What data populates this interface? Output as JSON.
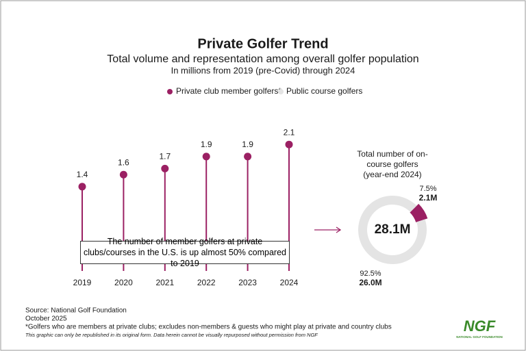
{
  "chart_data": [
    {
      "type": "lollipop",
      "title": "Private Golfer Trend",
      "subtitle": "Total volume and representation among overall golfer population",
      "subtitle_2": "In millions from 2019 (pre-Covid) through 2024",
      "categories": [
        "2019",
        "2020",
        "2021",
        "2022",
        "2023",
        "2024"
      ],
      "series": [
        {
          "name": "Private club member golfers*",
          "color": "#9b2063",
          "values": [
            1.4,
            1.6,
            1.7,
            1.9,
            1.9,
            2.1
          ]
        }
      ],
      "annotation": "The number of member golfers at private clubs/courses in the U.S. is up almost 50% compared to 2019"
    },
    {
      "type": "donut",
      "title": "Total number of on-course golfers (year-end 2024)",
      "center_label": "28.1M",
      "categories": [
        "Private club member golfers*",
        "Public course golfers"
      ],
      "values": [
        2.1,
        26.0
      ],
      "value_labels": [
        "2.1M",
        "26.0M"
      ],
      "percent_labels": [
        "7.5%",
        "92.5%"
      ],
      "colors": [
        "#9b2063",
        "#e4e4e4"
      ]
    }
  ],
  "footer": {
    "source": "Source: National Golf Foundation",
    "date": "October 2025",
    "footnote": "*Golfers who are members at private clubs; excludes non-members & guests who might play at private and country clubs",
    "disclaimer": "This graphic can only be republished in its original form. Data herein cannot be visually repurposed without permission from NGF"
  },
  "logo": {
    "mark": "NGF",
    "name": "NATIONAL GOLF FOUNDATION"
  }
}
